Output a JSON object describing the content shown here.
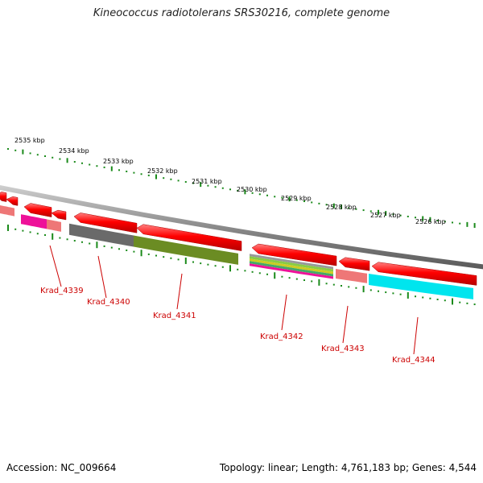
{
  "title": "Kineococcus radiotolerans SRS30216, complete genome",
  "footer": {
    "accession": "Accession: NC_009664",
    "info": "Topology: linear; Length: 4,761,183 bp; Genes: 4,544"
  },
  "ruler": {
    "labels": [
      "2535 kbp",
      "2534 kbp",
      "2533 kbp",
      "2532 kbp",
      "2531 kbp",
      "2530 kbp",
      "2529 kbp",
      "2528 kbp",
      "2527 kbp",
      "2526 kbp"
    ]
  },
  "genes": [
    {
      "name": "Krad_4339"
    },
    {
      "name": "Krad_4340"
    },
    {
      "name": "Krad_4341"
    },
    {
      "name": "Krad_4342"
    },
    {
      "name": "Krad_4343"
    },
    {
      "name": "Krad_4344"
    }
  ],
  "colors": {
    "gene": "#ff0000",
    "backbone": "#8a8a8a",
    "tick": "#1a8a1a",
    "label": "#cc0000",
    "pink": "#ee1199",
    "salmon": "#ee7777",
    "gray": "#666666",
    "olive": "#6b8c23",
    "cyan": "#00e5ee"
  }
}
